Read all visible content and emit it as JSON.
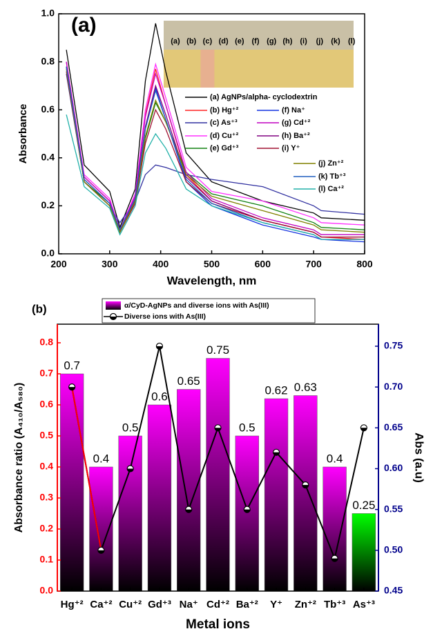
{
  "chart_data": [
    {
      "type": "line",
      "panel_label": "(a)",
      "x_label": "Wavelength, nm",
      "y_label": "Absorbance",
      "xlim": [
        200,
        800
      ],
      "xticks": [
        200,
        300,
        400,
        500,
        600,
        700,
        800
      ],
      "ylim": [
        0,
        1
      ],
      "yticks": [
        {
          "value": 0,
          "label": "0.0"
        },
        0.2,
        0.4,
        0.6,
        0.8,
        {
          "value": 1,
          "label": "1.0"
        }
      ],
      "inset_labels": [
        "(a)",
        "(b)",
        "(c)",
        "(d)",
        "(e)",
        "(f)",
        "(g)",
        "(h)",
        "(i)",
        "(j)",
        "(k)",
        "(l)"
      ],
      "x": [
        215,
        250,
        300,
        320,
        350,
        370,
        390,
        410,
        450,
        500,
        600,
        700,
        715,
        800
      ],
      "series": [
        {
          "name": "(a) AgNPs/alpha- cyclodextrin",
          "color": "#000000",
          "values": [
            0.85,
            0.37,
            0.26,
            0.11,
            0.27,
            0.72,
            0.96,
            0.76,
            0.42,
            0.3,
            0.22,
            0.17,
            0.15,
            0.14
          ]
        },
        {
          "name": "(b) Hg⁺²",
          "color": "#ff2020",
          "values": [
            0.8,
            0.32,
            0.22,
            0.1,
            0.24,
            0.58,
            0.77,
            0.62,
            0.33,
            0.22,
            0.14,
            0.09,
            0.07,
            0.06
          ]
        },
        {
          "name": "(c) As⁺³",
          "color": "#3030a0",
          "values": [
            0.75,
            0.3,
            0.2,
            0.13,
            0.22,
            0.33,
            0.37,
            0.36,
            0.33,
            0.31,
            0.28,
            0.2,
            0.18,
            0.165
          ]
        },
        {
          "name": "(d) Cu⁺²",
          "color": "#ff30ff",
          "values": [
            0.8,
            0.33,
            0.23,
            0.1,
            0.25,
            0.6,
            0.79,
            0.65,
            0.36,
            0.26,
            0.22,
            0.15,
            0.13,
            0.12
          ]
        },
        {
          "name": "(e) Gd⁺³",
          "color": "#108010",
          "values": [
            0.78,
            0.3,
            0.21,
            0.09,
            0.22,
            0.48,
            0.63,
            0.55,
            0.34,
            0.25,
            0.2,
            0.13,
            0.11,
            0.1
          ]
        },
        {
          "name": "(f)  Na⁺",
          "color": "#1030e0",
          "values": [
            0.78,
            0.3,
            0.2,
            0.09,
            0.22,
            0.52,
            0.69,
            0.56,
            0.3,
            0.2,
            0.12,
            0.07,
            0.06,
            0.05
          ]
        },
        {
          "name": "(g) Cd⁺²",
          "color": "#c000c0",
          "values": [
            0.8,
            0.32,
            0.22,
            0.1,
            0.24,
            0.57,
            0.75,
            0.62,
            0.34,
            0.23,
            0.15,
            0.1,
            0.08,
            0.08
          ]
        },
        {
          "name": "(h) Ba⁺²",
          "color": "#800080",
          "values": [
            0.78,
            0.31,
            0.21,
            0.09,
            0.23,
            0.53,
            0.7,
            0.58,
            0.32,
            0.22,
            0.14,
            0.09,
            0.07,
            0.07
          ]
        },
        {
          "name": "(i)  Y⁺",
          "color": "#a01030",
          "values": [
            0.76,
            0.3,
            0.2,
            0.09,
            0.21,
            0.46,
            0.6,
            0.52,
            0.3,
            0.21,
            0.14,
            0.09,
            0.07,
            0.07
          ]
        },
        {
          "name": "(j) Zn⁺²",
          "color": "#808000",
          "values": [
            0.77,
            0.3,
            0.2,
            0.09,
            0.22,
            0.49,
            0.64,
            0.55,
            0.33,
            0.24,
            0.18,
            0.12,
            0.1,
            0.09
          ]
        },
        {
          "name": "(k) Tb⁺³",
          "color": "#1f5fbf",
          "values": [
            0.78,
            0.31,
            0.21,
            0.1,
            0.23,
            0.52,
            0.68,
            0.56,
            0.31,
            0.21,
            0.13,
            0.08,
            0.06,
            0.06
          ]
        },
        {
          "name": "(l)  Ca⁺²",
          "color": "#20b0a8",
          "values": [
            0.58,
            0.28,
            0.19,
            0.08,
            0.2,
            0.42,
            0.5,
            0.44,
            0.27,
            0.2,
            0.13,
            0.08,
            0.06,
            0.06
          ]
        }
      ]
    },
    {
      "type": "bar",
      "panel_label": "(b)",
      "x_label": "Metal ions",
      "y_label": "Absorbance ratio (A₄₁₀/A₅₈₀)",
      "y2_label": "Abs (a.u)",
      "categories": [
        "Hg⁺²",
        "Ca⁺²",
        "Cu⁺²",
        "Gd⁺³",
        "Na⁺",
        "Cd⁺²",
        "Ba⁺²",
        "Y⁺",
        "Zn⁺²",
        "Tb⁺³",
        "As⁺³"
      ],
      "ylim": [
        0,
        0.86
      ],
      "yticks": [
        {
          "value": 0,
          "label": "0.0"
        },
        0.1,
        0.2,
        0.3,
        0.4,
        0.5,
        0.6,
        0.7,
        0.8
      ],
      "ytick_color": "#ff0000",
      "y2lim": [
        0.45,
        0.777
      ],
      "y2ticks": [
        0.45,
        {
          "value": 0.5,
          "label": "0.50"
        },
        0.55,
        {
          "value": 0.6,
          "label": "0.60"
        },
        0.65,
        {
          "value": 0.7,
          "label": "0.70"
        },
        0.75
      ],
      "y2tick_color": "#00008b",
      "series": [
        {
          "name": "α/CyD-AgNPs and diverse ions with As(III)",
          "colors": [
            "#ff00ff",
            "#ff00ff",
            "#ff00ff",
            "#ff00ff",
            "#ff00ff",
            "#ff00ff",
            "#ff00ff",
            "#ff00ff",
            "#ff00ff",
            "#ff00ff",
            "#00ff00"
          ],
          "values": [
            0.7,
            0.4,
            0.5,
            0.6,
            0.65,
            0.75,
            0.5,
            0.62,
            0.63,
            0.4,
            0.25
          ]
        },
        {
          "name": "Diverse ions with As(III)",
          "type": "line",
          "axis": "y2",
          "color": "#000000",
          "first_segment_color": "#ff0000",
          "values": [
            0.7,
            0.5,
            0.6,
            0.75,
            0.55,
            0.65,
            0.55,
            0.62,
            0.58,
            0.49,
            0.65
          ]
        }
      ]
    }
  ]
}
